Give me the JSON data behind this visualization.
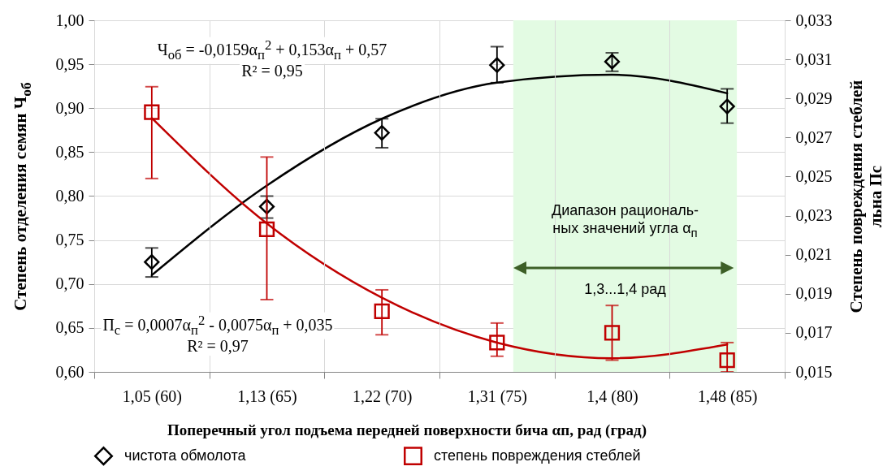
{
  "chart_data": {
    "type": "scatter",
    "xlabel": "Поперечный угол подъема передней поверхности бича αп, рад (град)",
    "ylabel": "Степень отделения семян Ч$_{об}$",
    "y2label": "Степень повреждения стеблей\nльна Пс",
    "categories": [
      "1,05 (60)",
      "1,13 (65)",
      "1,22 (70)",
      "1,31 (75)",
      "1,4 (80)",
      "1,48 (85)"
    ],
    "ylim": [
      0.6,
      1.0
    ],
    "yticks": [
      {
        "value": 0.6,
        "label": "0,60"
      },
      {
        "value": 0.65,
        "label": "0,65"
      },
      {
        "value": 0.7,
        "label": "0,70"
      },
      {
        "value": 0.75,
        "label": "0,75"
      },
      {
        "value": 0.8,
        "label": "0,80"
      },
      {
        "value": 0.85,
        "label": "0,85"
      },
      {
        "value": 0.9,
        "label": "0,90"
      },
      {
        "value": 0.95,
        "label": "0,95"
      },
      {
        "value": 1.0,
        "label": "1,00"
      }
    ],
    "y2lim": [
      0.015,
      0.033
    ],
    "y2ticks": [
      {
        "value": 0.015,
        "label": "0,015"
      },
      {
        "value": 0.017,
        "label": "0,017"
      },
      {
        "value": 0.019,
        "label": "0,019"
      },
      {
        "value": 0.021,
        "label": "0,021"
      },
      {
        "value": 0.023,
        "label": "0,023"
      },
      {
        "value": 0.025,
        "label": "0,025"
      },
      {
        "value": 0.027,
        "label": "0,027"
      },
      {
        "value": 0.029,
        "label": "0,029"
      },
      {
        "value": 0.031,
        "label": "0,031"
      },
      {
        "value": 0.033,
        "label": "0,033"
      }
    ],
    "series": [
      {
        "name": "чистота обмолота",
        "type": "scatter",
        "marker": "diamond",
        "color": "#000000",
        "values": [
          0.725,
          0.788,
          0.872,
          0.949,
          0.953,
          0.902
        ],
        "errors": [
          [
            0.708,
            0.741
          ],
          [
            0.775,
            0.8
          ],
          [
            0.855,
            0.888
          ],
          [
            0.929,
            0.97
          ],
          [
            0.942,
            0.963
          ],
          [
            0.883,
            0.922
          ]
        ]
      },
      {
        "type": "line",
        "color": "#000000",
        "x": [
          "1,05 (60)",
          "1,13 (65)",
          "1,22 (70)",
          "1,31 (75)",
          "1,4 (80)",
          "1,48 (85)"
        ],
        "values": [
          0.71,
          0.812,
          0.888,
          0.929,
          0.938,
          0.917
        ]
      },
      {
        "name": "степень повреждения стеблей",
        "type": "scatter",
        "marker": "square",
        "axis": "y2",
        "color": "#c00000",
        "values": [
          0.0283,
          0.0223,
          0.0181,
          0.0165,
          0.017,
          0.0156
        ],
        "errors": [
          [
            0.0249,
            0.0296
          ],
          [
            0.0187,
            0.026
          ],
          [
            0.0169,
            0.0192
          ],
          [
            0.0158,
            0.0175
          ],
          [
            0.0156,
            0.0184
          ],
          [
            0.015,
            0.0165
          ]
        ]
      },
      {
        "type": "line",
        "axis": "y2",
        "color": "#c00000",
        "x": [
          "1,05 (60)",
          "1,13 (65)",
          "1,22 (70)",
          "1,31 (75)",
          "1,4 (80)",
          "1,48 (85)"
        ],
        "values": [
          0.028,
          0.0226,
          0.0188,
          0.0165,
          0.0157,
          0.0164
        ]
      }
    ],
    "bands": [
      {
        "axis": "x",
        "from": "1,31 (75)",
        "to": "1,48 (85)",
        "label": "Диапазон рациональ-\nных значений угла α$_{п}$",
        "color": "#e3fbe3"
      }
    ],
    "annotations": [
      "Ч$_{об}$ = -0,0159α$_{п}$$^{2}$ + 0,153α$_{п}$ + 0,57",
      "R² = 0,95",
      "П$_{с}$ = 0,0007α$_{п}$$^{2}$ - 0,0075α$_{п}$ + 0,035",
      "R² = 0,97",
      "1,3...1,4 рад"
    ],
    "grid": true,
    "legend": "bottom"
  }
}
